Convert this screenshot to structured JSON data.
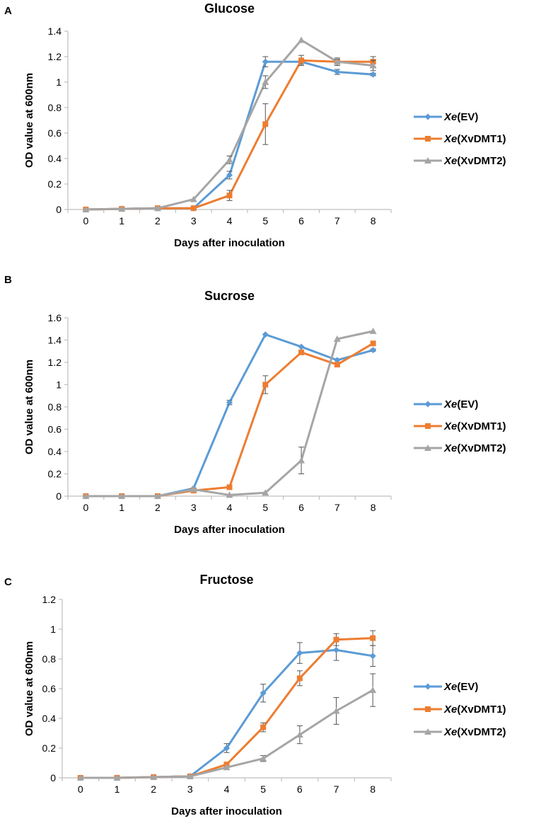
{
  "figure": {
    "panels": [
      "A",
      "B",
      "C"
    ]
  },
  "chart_data": [
    {
      "panel": "A",
      "type": "line",
      "title": "Glucose",
      "xlabel": "Days after inoculation",
      "ylabel": "OD value at 600nm",
      "x": [
        0,
        1,
        2,
        3,
        4,
        5,
        6,
        7,
        8
      ],
      "xticks": [
        "0",
        "1",
        "2",
        "3",
        "4",
        "5",
        "6",
        "7",
        "8"
      ],
      "ylim": [
        0,
        1.4
      ],
      "yticks": [
        "0",
        "0.2",
        "0.4",
        "0.6",
        "0.8",
        "1",
        "1.2",
        "1.4"
      ],
      "legend_position": "right",
      "series": [
        {
          "name": "Xe(EV)",
          "name_italic": "Xe",
          "name_rest": "(EV)",
          "color": "#5b9bd5",
          "marker": "diamond",
          "values": [
            0,
            0.005,
            0.01,
            0.01,
            0.27,
            1.16,
            1.16,
            1.08,
            1.06
          ],
          "errors": [
            0,
            0,
            0,
            0,
            0.03,
            0.04,
            0.02,
            0.02,
            0.01
          ]
        },
        {
          "name": "Xe(XvDMT1)",
          "name_italic": "Xe",
          "name_rest": "(XvDMT1)",
          "color": "#ed7d31",
          "marker": "square",
          "values": [
            0,
            0.005,
            0.01,
            0.01,
            0.11,
            0.67,
            1.17,
            1.16,
            1.16
          ],
          "errors": [
            0,
            0,
            0,
            0,
            0.04,
            0.16,
            0.04,
            0.03,
            0.04
          ]
        },
        {
          "name": "Xe(XvDMT2)",
          "name_italic": "Xe",
          "name_rest": "(XvDMT2)",
          "color": "#a5a5a5",
          "marker": "triangle",
          "values": [
            0,
            0.005,
            0.01,
            0.08,
            0.39,
            1.0,
            1.33,
            1.16,
            1.13
          ],
          "errors": [
            0,
            0,
            0,
            0,
            0.03,
            0.05,
            0,
            0.02,
            0.04
          ]
        }
      ]
    },
    {
      "panel": "B",
      "type": "line",
      "title": "Sucrose",
      "xlabel": "Days after inoculation",
      "ylabel": "OD value at 600nm",
      "x": [
        0,
        1,
        2,
        3,
        4,
        5,
        6,
        7,
        8
      ],
      "xticks": [
        "0",
        "1",
        "2",
        "3",
        "4",
        "5",
        "6",
        "7",
        "8"
      ],
      "ylim": [
        0,
        1.6
      ],
      "yticks": [
        "0",
        "0.2",
        "0.4",
        "0.6",
        "0.8",
        "1",
        "1.2",
        "1.4",
        "1.6"
      ],
      "legend_position": "right",
      "series": [
        {
          "name": "Xe(EV)",
          "name_italic": "Xe",
          "name_rest": "(EV)",
          "color": "#5b9bd5",
          "marker": "diamond",
          "values": [
            0,
            0,
            0,
            0.07,
            0.84,
            1.45,
            1.34,
            1.22,
            1.31
          ],
          "errors": [
            0,
            0,
            0,
            0,
            0.02,
            0,
            0,
            0,
            0.01
          ]
        },
        {
          "name": "Xe(XvDMT1)",
          "name_italic": "Xe",
          "name_rest": "(XvDMT1)",
          "color": "#ed7d31",
          "marker": "square",
          "values": [
            0,
            0,
            0,
            0.05,
            0.08,
            1.0,
            1.29,
            1.18,
            1.37
          ],
          "errors": [
            0,
            0,
            0,
            0,
            0,
            0.08,
            0,
            0,
            0
          ]
        },
        {
          "name": "Xe(XvDMT2)",
          "name_italic": "Xe",
          "name_rest": "(XvDMT2)",
          "color": "#a5a5a5",
          "marker": "triangle",
          "values": [
            0,
            0,
            0,
            0.06,
            0.01,
            0.03,
            0.32,
            1.41,
            1.48
          ],
          "errors": [
            0,
            0,
            0,
            0,
            0,
            0,
            0.12,
            0,
            0
          ]
        }
      ]
    },
    {
      "panel": "C",
      "type": "line",
      "title": "Fructose",
      "xlabel": "Days after inoculation",
      "ylabel": "OD value at 600nm",
      "x": [
        0,
        1,
        2,
        3,
        4,
        5,
        6,
        7,
        8
      ],
      "xticks": [
        "0",
        "1",
        "2",
        "3",
        "4",
        "5",
        "6",
        "7",
        "8"
      ],
      "ylim": [
        0,
        1.2
      ],
      "yticks": [
        "0",
        "0.2",
        "0.4",
        "0.6",
        "0.8",
        "1",
        "1.2"
      ],
      "legend_position": "right",
      "series": [
        {
          "name": "Xe(EV)",
          "name_italic": "Xe",
          "name_rest": "(EV)",
          "color": "#5b9bd5",
          "marker": "diamond",
          "values": [
            0,
            0,
            0.005,
            0.01,
            0.2,
            0.57,
            0.84,
            0.86,
            0.82
          ],
          "errors": [
            0,
            0,
            0,
            0,
            0.03,
            0.06,
            0.07,
            0.07,
            0.07
          ]
        },
        {
          "name": "Xe(XvDMT1)",
          "name_italic": "Xe",
          "name_rest": "(XvDMT1)",
          "color": "#ed7d31",
          "marker": "square",
          "values": [
            0,
            0,
            0.005,
            0.01,
            0.09,
            0.34,
            0.67,
            0.93,
            0.94
          ],
          "errors": [
            0,
            0,
            0,
            0,
            0,
            0.03,
            0.05,
            0.04,
            0.05
          ]
        },
        {
          "name": "Xe(XvDMT2)",
          "name_italic": "Xe",
          "name_rest": "(XvDMT2)",
          "color": "#a5a5a5",
          "marker": "triangle",
          "values": [
            0,
            0,
            0.005,
            0.01,
            0.07,
            0.13,
            0.29,
            0.45,
            0.59
          ],
          "errors": [
            0,
            0,
            0,
            0,
            0,
            0.02,
            0.06,
            0.09,
            0.11
          ]
        }
      ]
    }
  ]
}
